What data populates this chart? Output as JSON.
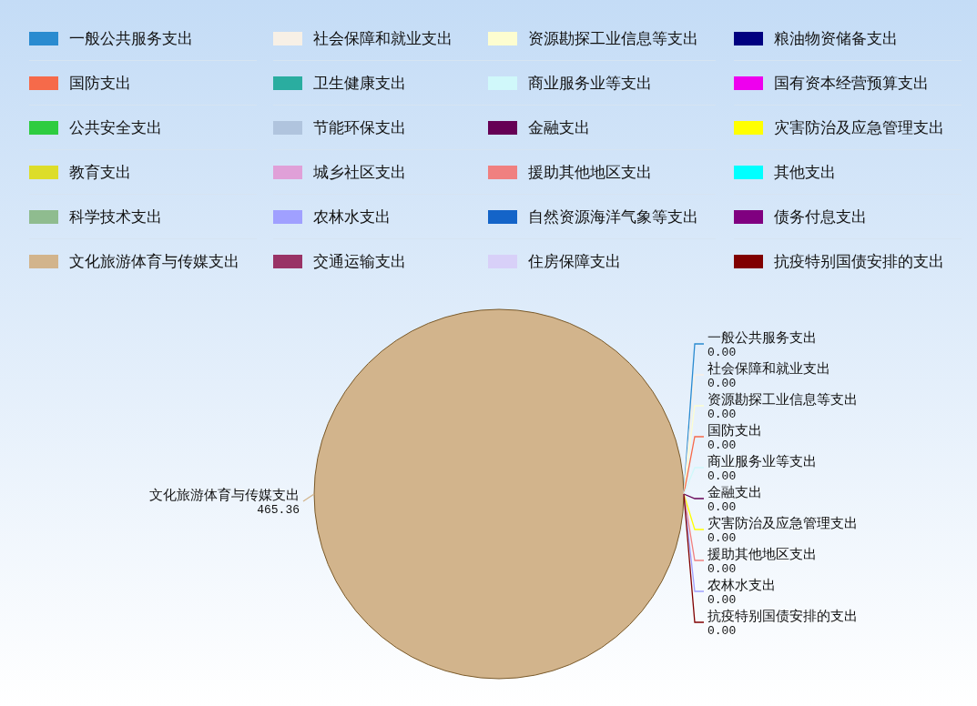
{
  "chart_data": {
    "type": "pie",
    "legend": "top",
    "categories": [
      "一般公共服务支出",
      "社会保障和就业支出",
      "资源勘探工业信息等支出",
      "粮油物资储备支出",
      "国防支出",
      "卫生健康支出",
      "商业服务业等支出",
      "国有资本经营预算支出",
      "公共安全支出",
      "节能环保支出",
      "金融支出",
      "灾害防治及应急管理支出",
      "教育支出",
      "城乡社区支出",
      "援助其他地区支出",
      "其他支出",
      "科学技术支出",
      "农林水支出",
      "自然资源海洋气象等支出",
      "债务付息支出",
      "文化旅游体育与传媒支出",
      "交通运输支出",
      "住房保障支出",
      "抗疫特别国债安排的支出"
    ],
    "values": [
      0,
      0,
      0,
      0,
      0,
      0,
      0,
      0,
      0,
      0,
      0,
      0,
      0,
      0,
      0,
      0,
      0,
      0,
      0,
      0,
      465.36,
      0,
      0,
      0
    ],
    "value_labels": [
      "0.00",
      "0.00",
      "0.00",
      null,
      "0.00",
      null,
      "0.00",
      null,
      null,
      null,
      "0.00",
      "0.00",
      null,
      null,
      "0.00",
      null,
      null,
      "0.00",
      null,
      null,
      "465.36",
      null,
      null,
      "0.00"
    ],
    "colors": [
      "#2a8bd0",
      "#f7f0e6",
      "#fdfdd0",
      "#000080",
      "#f66a4a",
      "#2aada0",
      "#d0f8fa",
      "#ee00ee",
      "#2ecc40",
      "#b0c4de",
      "#660055",
      "#ffff00",
      "#dddd2a",
      "#e0a0d8",
      "#f08080",
      "#00ffff",
      "#8fbc8f",
      "#a0a0ff",
      "#1464c8",
      "#800080",
      "#d2b48c",
      "#993366",
      "#d8d0f8",
      "#800000"
    ]
  }
}
